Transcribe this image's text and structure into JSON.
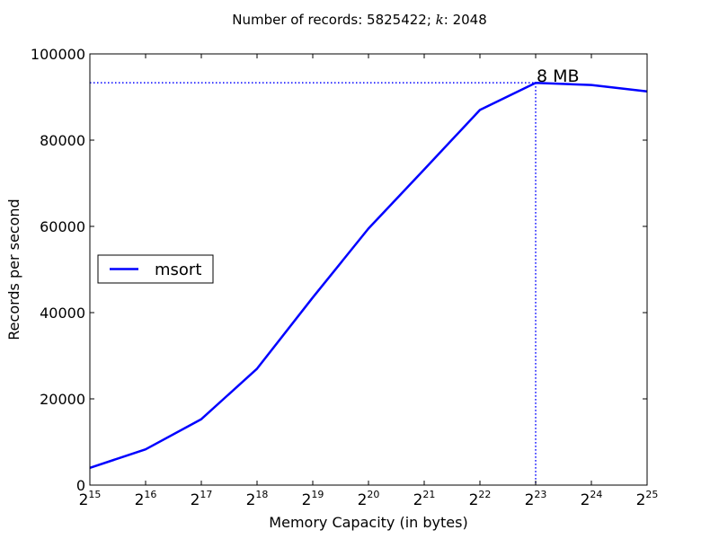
{
  "chart_data": {
    "type": "line",
    "title": "Number of records: 5825422; k: 2048",
    "title_parts": {
      "prefix": "Number of records: 5825422; ",
      "k_symbol": "k",
      "suffix": ": 2048"
    },
    "xlabel": "Memory Capacity (in bytes)",
    "ylabel": "Records per second",
    "x_scale": "log2",
    "x": [
      15,
      16,
      17,
      18,
      19,
      20,
      21,
      22,
      23,
      24,
      25
    ],
    "x_tick_labels": [
      {
        "base": "2",
        "exp": "15"
      },
      {
        "base": "2",
        "exp": "16"
      },
      {
        "base": "2",
        "exp": "17"
      },
      {
        "base": "2",
        "exp": "18"
      },
      {
        "base": "2",
        "exp": "19"
      },
      {
        "base": "2",
        "exp": "20"
      },
      {
        "base": "2",
        "exp": "21"
      },
      {
        "base": "2",
        "exp": "22"
      },
      {
        "base": "2",
        "exp": "23"
      },
      {
        "base": "2",
        "exp": "24"
      },
      {
        "base": "2",
        "exp": "25"
      }
    ],
    "y_ticks": [
      0,
      20000,
      40000,
      60000,
      80000,
      100000
    ],
    "y_tick_labels": [
      "0",
      "20000",
      "40000",
      "60000",
      "80000",
      "100000"
    ],
    "xlim": [
      15,
      25
    ],
    "ylim": [
      0,
      100000
    ],
    "grid": false,
    "legend_position": "center-left",
    "series": [
      {
        "name": "msort",
        "color": "#0000ff",
        "values": [
          4000,
          8300,
          15300,
          27000,
          43500,
          59500,
          73200,
          87000,
          93300,
          92800,
          91300
        ]
      }
    ],
    "annotation": {
      "text": "8 MB",
      "x": 23,
      "y": 93300,
      "style": "dotted",
      "color": "#0000ff"
    }
  }
}
